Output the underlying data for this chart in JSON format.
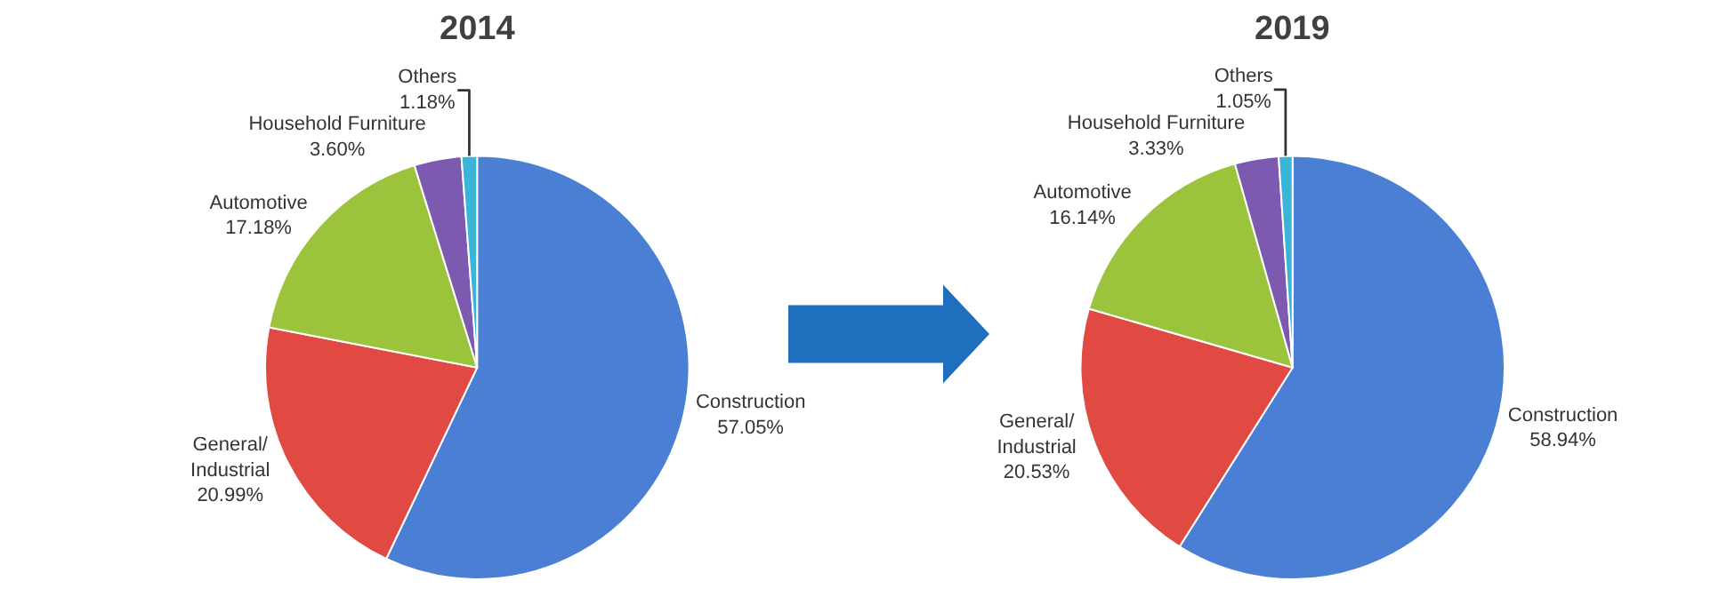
{
  "chart_data": [
    {
      "type": "pie",
      "title": "2014",
      "categories": [
        "Construction",
        "General/\nIndustrial",
        "Automotive",
        "Household Furniture",
        "Others"
      ],
      "values": [
        57.05,
        20.99,
        17.18,
        3.6,
        1.18
      ],
      "value_labels": [
        "57.05%",
        "20.99%",
        "17.18%",
        "3.60%",
        "1.18%"
      ],
      "colors": [
        "#4a7fd4",
        "#e04a42",
        "#9bc43c",
        "#7b5ab0",
        "#3bb4d8"
      ]
    },
    {
      "type": "pie",
      "title": "2019",
      "categories": [
        "Construction",
        "General/\nIndustrial",
        "Automotive",
        "Household Furniture",
        "Others"
      ],
      "values": [
        58.94,
        20.53,
        16.14,
        3.33,
        1.05
      ],
      "value_labels": [
        "58.94%",
        "20.53%",
        "16.14%",
        "3.33%",
        "1.05%"
      ],
      "colors": [
        "#4a7fd4",
        "#e04a42",
        "#9bc43c",
        "#7b5ab0",
        "#3bb4d8"
      ]
    }
  ]
}
